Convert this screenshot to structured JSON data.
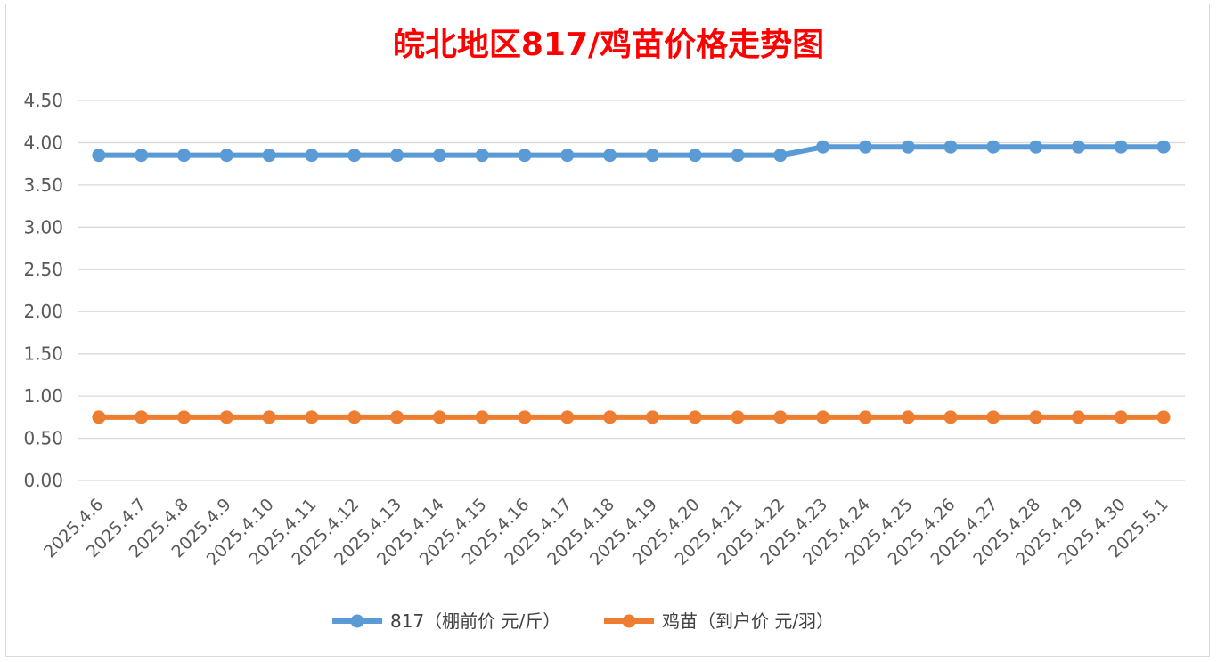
{
  "chart_data": {
    "type": "line",
    "title": "皖北地区817/鸡苗价格走势图",
    "xlabel": "",
    "ylabel": "",
    "ylim": [
      0,
      4.5
    ],
    "yticks": [
      "0.00",
      "0.50",
      "1.00",
      "1.50",
      "2.00",
      "2.50",
      "3.00",
      "3.50",
      "4.00",
      "4.50"
    ],
    "grid": true,
    "legend_position": "bottom",
    "categories": [
      "2025.4.6",
      "2025.4.7",
      "2025.4.8",
      "2025.4.9",
      "2025.4.10",
      "2025.4.11",
      "2025.4.12",
      "2025.4.13",
      "2025.4.14",
      "2025.4.15",
      "2025.4.16",
      "2025.4.17",
      "2025.4.18",
      "2025.4.19",
      "2025.4.20",
      "2025.4.21",
      "2025.4.22",
      "2025.4.23",
      "2025.4.24",
      "2025.4.25",
      "2025.4.26",
      "2025.4.27",
      "2025.4.28",
      "2025.4.29",
      "2025.4.30",
      "2025.5.1"
    ],
    "series": [
      {
        "name": "817（棚前价 元/斤）",
        "color": "#5b9bd5",
        "values": [
          3.85,
          3.85,
          3.85,
          3.85,
          3.85,
          3.85,
          3.85,
          3.85,
          3.85,
          3.85,
          3.85,
          3.85,
          3.85,
          3.85,
          3.85,
          3.85,
          3.85,
          3.95,
          3.95,
          3.95,
          3.95,
          3.95,
          3.95,
          3.95,
          3.95,
          3.95
        ]
      },
      {
        "name": "鸡苗（到户价 元/羽）",
        "color": "#ed7d31",
        "values": [
          0.75,
          0.75,
          0.75,
          0.75,
          0.75,
          0.75,
          0.75,
          0.75,
          0.75,
          0.75,
          0.75,
          0.75,
          0.75,
          0.75,
          0.75,
          0.75,
          0.75,
          0.75,
          0.75,
          0.75,
          0.75,
          0.75,
          0.75,
          0.75,
          0.75,
          0.75
        ]
      }
    ]
  }
}
